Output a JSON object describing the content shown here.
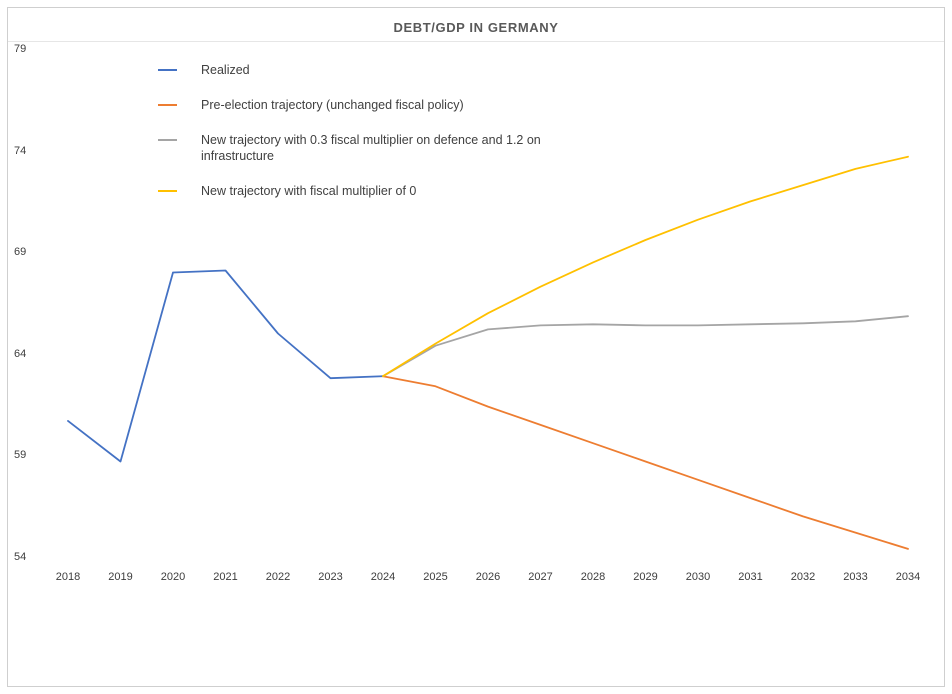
{
  "chart_data": {
    "type": "line",
    "title": "DEBT/GDP IN GERMANY",
    "xlabel": "",
    "ylabel": "",
    "ylim": [
      54,
      79
    ],
    "grid": false,
    "legend_position": "top-left-inside",
    "categories": [
      "2018",
      "2019",
      "2020",
      "2021",
      "2022",
      "2023",
      "2024",
      "2025",
      "2026",
      "2027",
      "2028",
      "2029",
      "2030",
      "2031",
      "2032",
      "2033",
      "2034"
    ],
    "y_ticks": [
      54,
      59,
      64,
      69,
      74,
      79
    ],
    "series": [
      {
        "id": "realized",
        "label": "Realized",
        "color": "#4472C4",
        "values": [
          60.7,
          58.7,
          68.0,
          68.1,
          65.0,
          62.8,
          62.9,
          null,
          null,
          null,
          null,
          null,
          null,
          null,
          null,
          null,
          null
        ]
      },
      {
        "id": "pre-election",
        "label": "Pre-election trajectory (unchanged fiscal policy)",
        "color": "#ED7D31",
        "values": [
          null,
          null,
          null,
          null,
          null,
          null,
          62.9,
          62.4,
          61.4,
          60.5,
          59.6,
          58.7,
          57.8,
          56.9,
          56.0,
          55.2,
          54.4
        ]
      },
      {
        "id": "new-trajectory-multipliers",
        "label": "New trajectory with 0.3 fiscal multiplier on defence and 1.2 on infrastructure",
        "color": "#A5A5A5",
        "values": [
          null,
          null,
          null,
          null,
          null,
          null,
          62.9,
          64.4,
          65.2,
          65.4,
          65.45,
          65.4,
          65.4,
          65.45,
          65.5,
          65.6,
          65.85
        ]
      },
      {
        "id": "new-trajectory-zero",
        "label": "New trajectory with fiscal multiplier of 0",
        "color": "#FFC000",
        "values": [
          null,
          null,
          null,
          null,
          null,
          null,
          62.9,
          64.5,
          66.0,
          67.3,
          68.5,
          69.6,
          70.6,
          71.5,
          72.3,
          73.1,
          73.7
        ]
      }
    ]
  }
}
